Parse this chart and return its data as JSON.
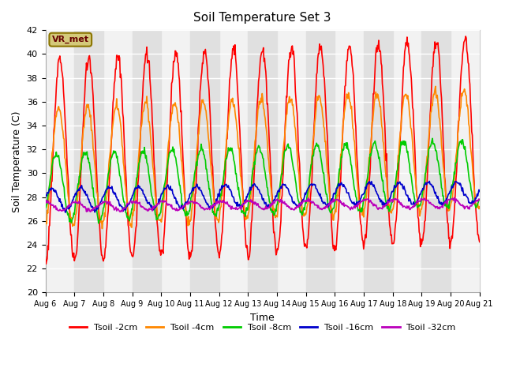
{
  "title": "Soil Temperature Set 3",
  "xlabel": "Time",
  "ylabel": "Soil Temperature (C)",
  "ylim": [
    20,
    42
  ],
  "xtick_labels": [
    "Aug 6",
    "Aug 7",
    "Aug 8",
    "Aug 9",
    "Aug 10",
    "Aug 11",
    "Aug 12",
    "Aug 13",
    "Aug 14",
    "Aug 15",
    "Aug 16",
    "Aug 17",
    "Aug 18",
    "Aug 19",
    "Aug 20",
    "Aug 21"
  ],
  "colors": {
    "2cm": "#ff0000",
    "4cm": "#ff8800",
    "8cm": "#00cc00",
    "16cm": "#0000cc",
    "32cm": "#bb00bb"
  },
  "legend_labels": [
    "Tsoil -2cm",
    "Tsoil -4cm",
    "Tsoil -8cm",
    "Tsoil -16cm",
    "Tsoil -32cm"
  ],
  "vr_met_label": "VR_met",
  "band_light": "#f2f2f2",
  "band_dark": "#e0e0e0",
  "plot_bg": "#e8e8e8",
  "series": {
    "2cm": {
      "mean": 31.0,
      "amplitude": 8.5,
      "phase": -1.5708,
      "trend": 0.12,
      "noise": 0.3
    },
    "4cm": {
      "mean": 30.5,
      "amplitude": 5.0,
      "phase": -1.3,
      "trend": 0.1,
      "noise": 0.2
    },
    "8cm": {
      "mean": 28.8,
      "amplitude": 2.8,
      "phase": -0.8,
      "trend": 0.08,
      "noise": 0.15
    },
    "16cm": {
      "mean": 27.8,
      "amplitude": 0.9,
      "phase": 0.2,
      "trend": 0.04,
      "noise": 0.1
    },
    "32cm": {
      "mean": 27.2,
      "amplitude": 0.35,
      "phase": 1.2,
      "trend": 0.02,
      "noise": 0.08
    }
  }
}
